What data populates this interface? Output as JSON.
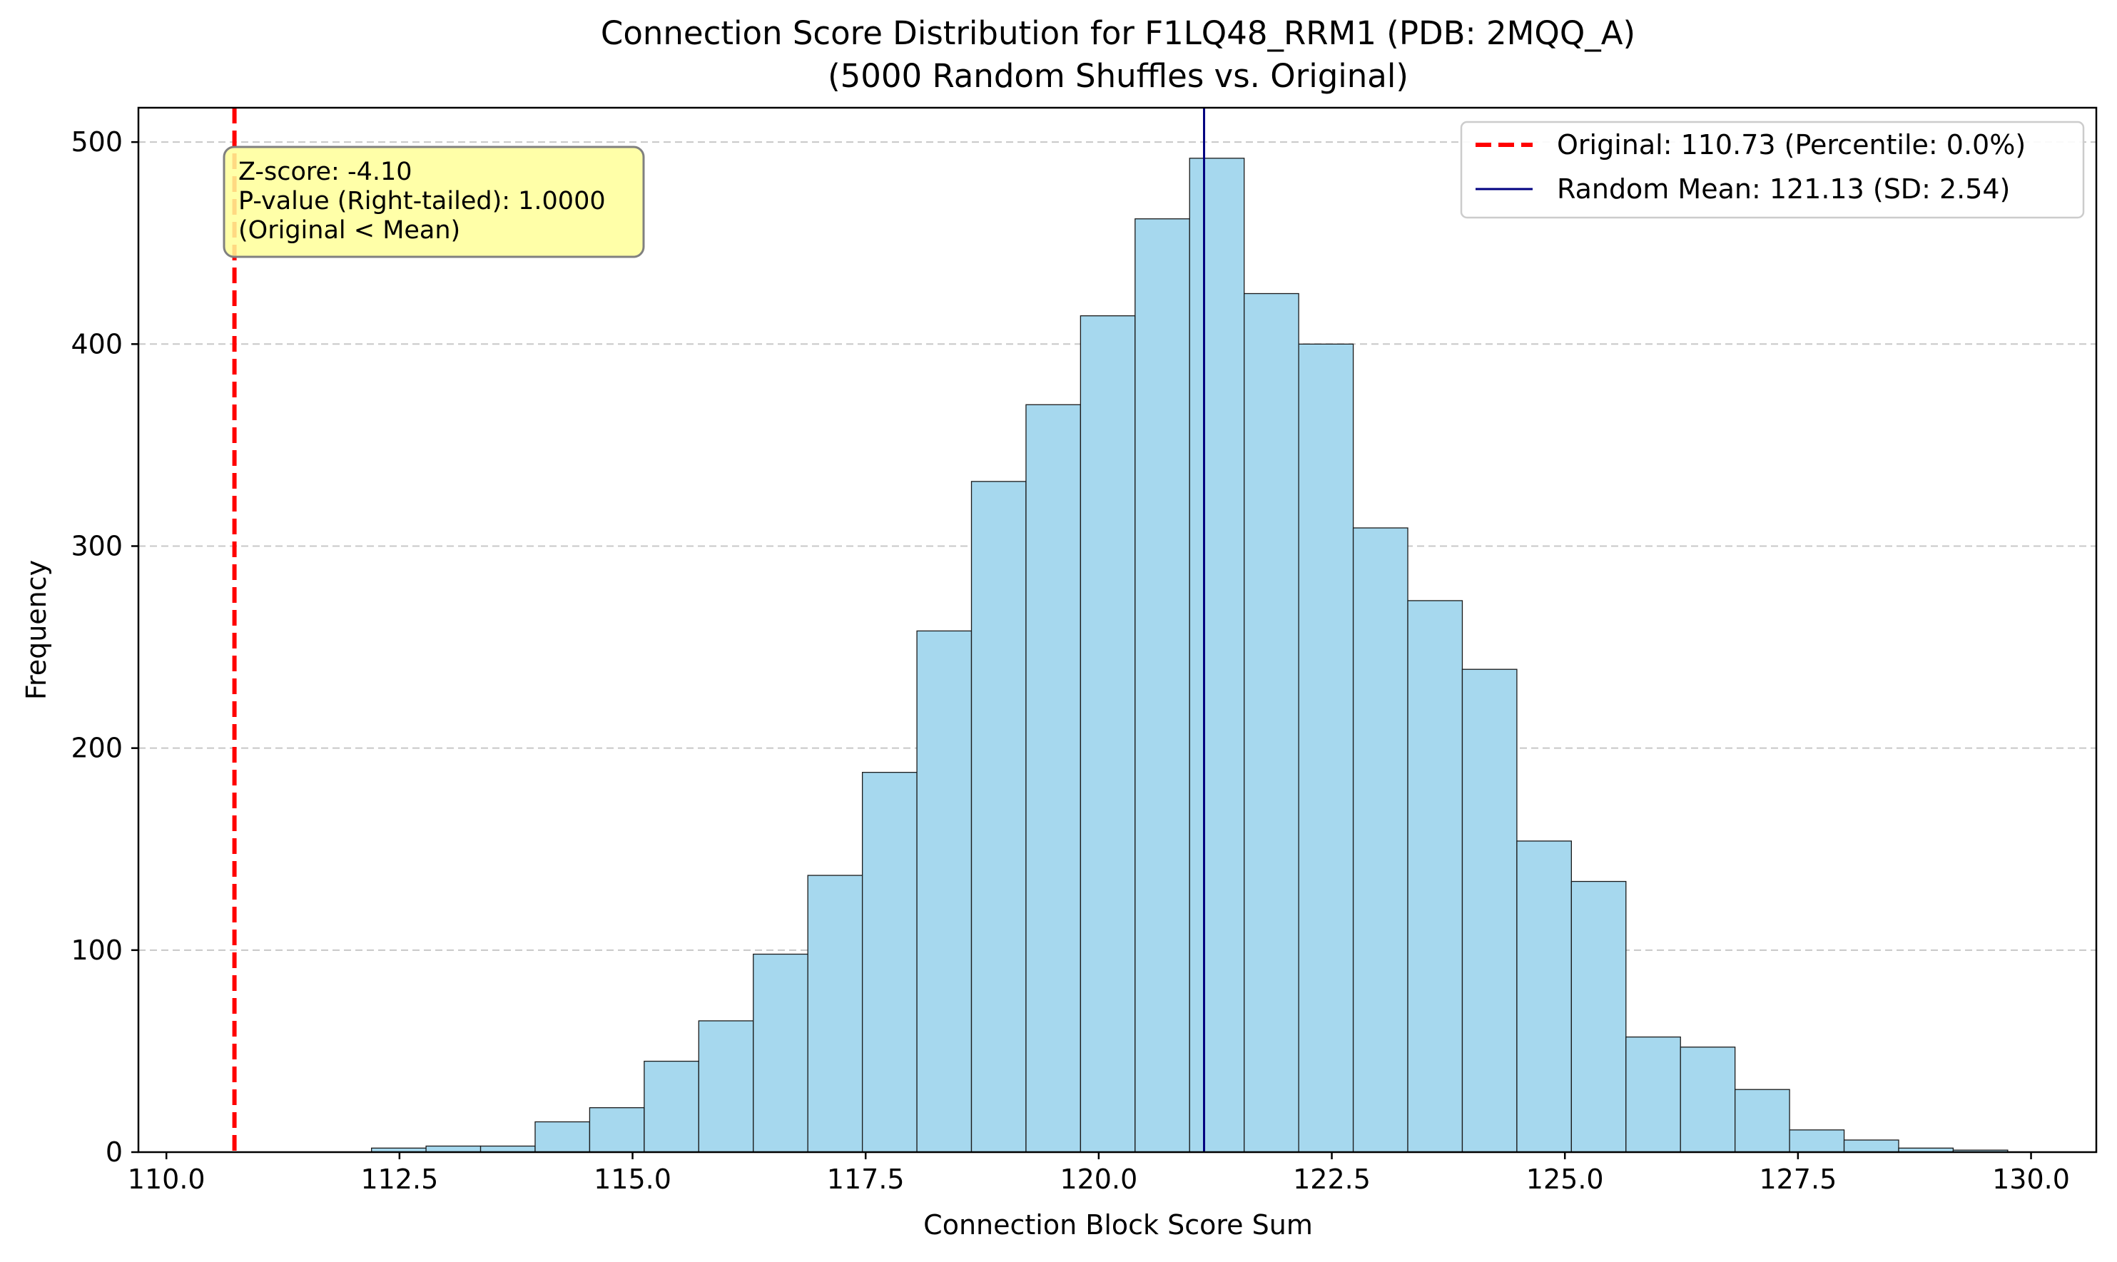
{
  "chart_data": {
    "type": "bar",
    "title": "Connection Score Distribution for F1LQ48_RRM1 (PDB: 2MQQ_A)",
    "subtitle": "(5000 Random Shuffles vs. Original)",
    "xlabel": "Connection Block Score Sum",
    "ylabel": "Frequency",
    "xlim": [
      109.7,
      130.7
    ],
    "ylim": [
      0,
      517
    ],
    "xticks": [
      110.0,
      112.5,
      115.0,
      117.5,
      120.0,
      122.5,
      125.0,
      127.5,
      130.0
    ],
    "xtick_labels": [
      "110.0",
      "112.5",
      "115.0",
      "117.5",
      "120.0",
      "122.5",
      "125.0",
      "127.5",
      "130.0"
    ],
    "yticks": [
      0,
      100,
      200,
      300,
      400,
      500
    ],
    "ytick_labels": [
      "0",
      "100",
      "200",
      "300",
      "400",
      "500"
    ],
    "grid": "y-dashed",
    "bin_width": 0.585,
    "bins": [
      {
        "start": 112.2,
        "count": 2
      },
      {
        "start": 112.785,
        "count": 3
      },
      {
        "start": 113.37,
        "count": 3
      },
      {
        "start": 113.955,
        "count": 15
      },
      {
        "start": 114.54,
        "count": 22
      },
      {
        "start": 115.125,
        "count": 45
      },
      {
        "start": 115.71,
        "count": 65
      },
      {
        "start": 116.295,
        "count": 98
      },
      {
        "start": 116.88,
        "count": 137
      },
      {
        "start": 117.465,
        "count": 188
      },
      {
        "start": 118.05,
        "count": 258
      },
      {
        "start": 118.635,
        "count": 332
      },
      {
        "start": 119.22,
        "count": 370
      },
      {
        "start": 119.805,
        "count": 414
      },
      {
        "start": 120.39,
        "count": 462
      },
      {
        "start": 120.975,
        "count": 492
      },
      {
        "start": 121.56,
        "count": 425
      },
      {
        "start": 122.145,
        "count": 400
      },
      {
        "start": 122.73,
        "count": 309
      },
      {
        "start": 123.315,
        "count": 273
      },
      {
        "start": 123.9,
        "count": 239
      },
      {
        "start": 124.485,
        "count": 154
      },
      {
        "start": 125.07,
        "count": 134
      },
      {
        "start": 125.655,
        "count": 57
      },
      {
        "start": 126.24,
        "count": 52
      },
      {
        "start": 126.825,
        "count": 31
      },
      {
        "start": 127.41,
        "count": 11
      },
      {
        "start": 127.995,
        "count": 6
      },
      {
        "start": 128.58,
        "count": 2
      },
      {
        "start": 129.165,
        "count": 1
      }
    ],
    "original_value": 110.73,
    "random_mean": 121.13,
    "legend": {
      "placement": "top-right",
      "original_label": "Original: 110.73 (Percentile: 0.0%)",
      "mean_label": "Random Mean: 121.13 (SD: 2.54)"
    },
    "annotation": {
      "lines": [
        "Z-score: -4.10",
        "P-value (Right-tailed): 1.0000",
        "(Original < Mean)"
      ]
    },
    "colors": {
      "bar_fill": "#a6d8ee",
      "bar_edge": "#1a1a1a",
      "original_line": "#ff0000",
      "mean_line": "#000080",
      "grid": "#c8c8c8",
      "annotation_fill": "#ffff99"
    }
  }
}
